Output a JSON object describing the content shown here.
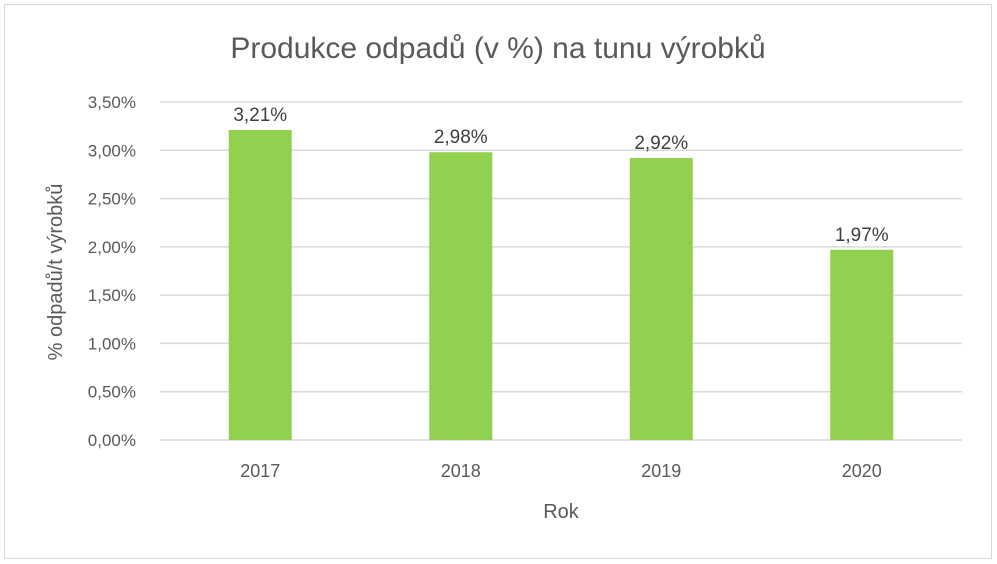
{
  "chart_data": {
    "type": "bar",
    "title": "Produkce odpadů (v %) na tunu výrobků",
    "xlabel": "Rok",
    "ylabel": "% odpadů/t  výrobků",
    "categories": [
      "2017",
      "2018",
      "2019",
      "2020"
    ],
    "values": [
      3.21,
      2.98,
      2.92,
      1.97
    ],
    "data_labels": [
      "3,21%",
      "2,98%",
      "2,92%",
      "1,97%"
    ],
    "yticks": [
      {
        "value": 0.0,
        "label": "0,00%"
      },
      {
        "value": 0.5,
        "label": "0,50%"
      },
      {
        "value": 1.0,
        "label": "1,00%"
      },
      {
        "value": 1.5,
        "label": "1,50%"
      },
      {
        "value": 2.0,
        "label": "2,00%"
      },
      {
        "value": 2.5,
        "label": "2,50%"
      },
      {
        "value": 3.0,
        "label": "3,00%"
      },
      {
        "value": 3.5,
        "label": "3,50%"
      }
    ],
    "ylim": [
      0,
      3.5
    ],
    "grid": true,
    "legend": "none",
    "colors": {
      "bar": "#92d050",
      "grid": "#d9d9d9",
      "text": "#404040",
      "tick_text": "#595959"
    }
  }
}
